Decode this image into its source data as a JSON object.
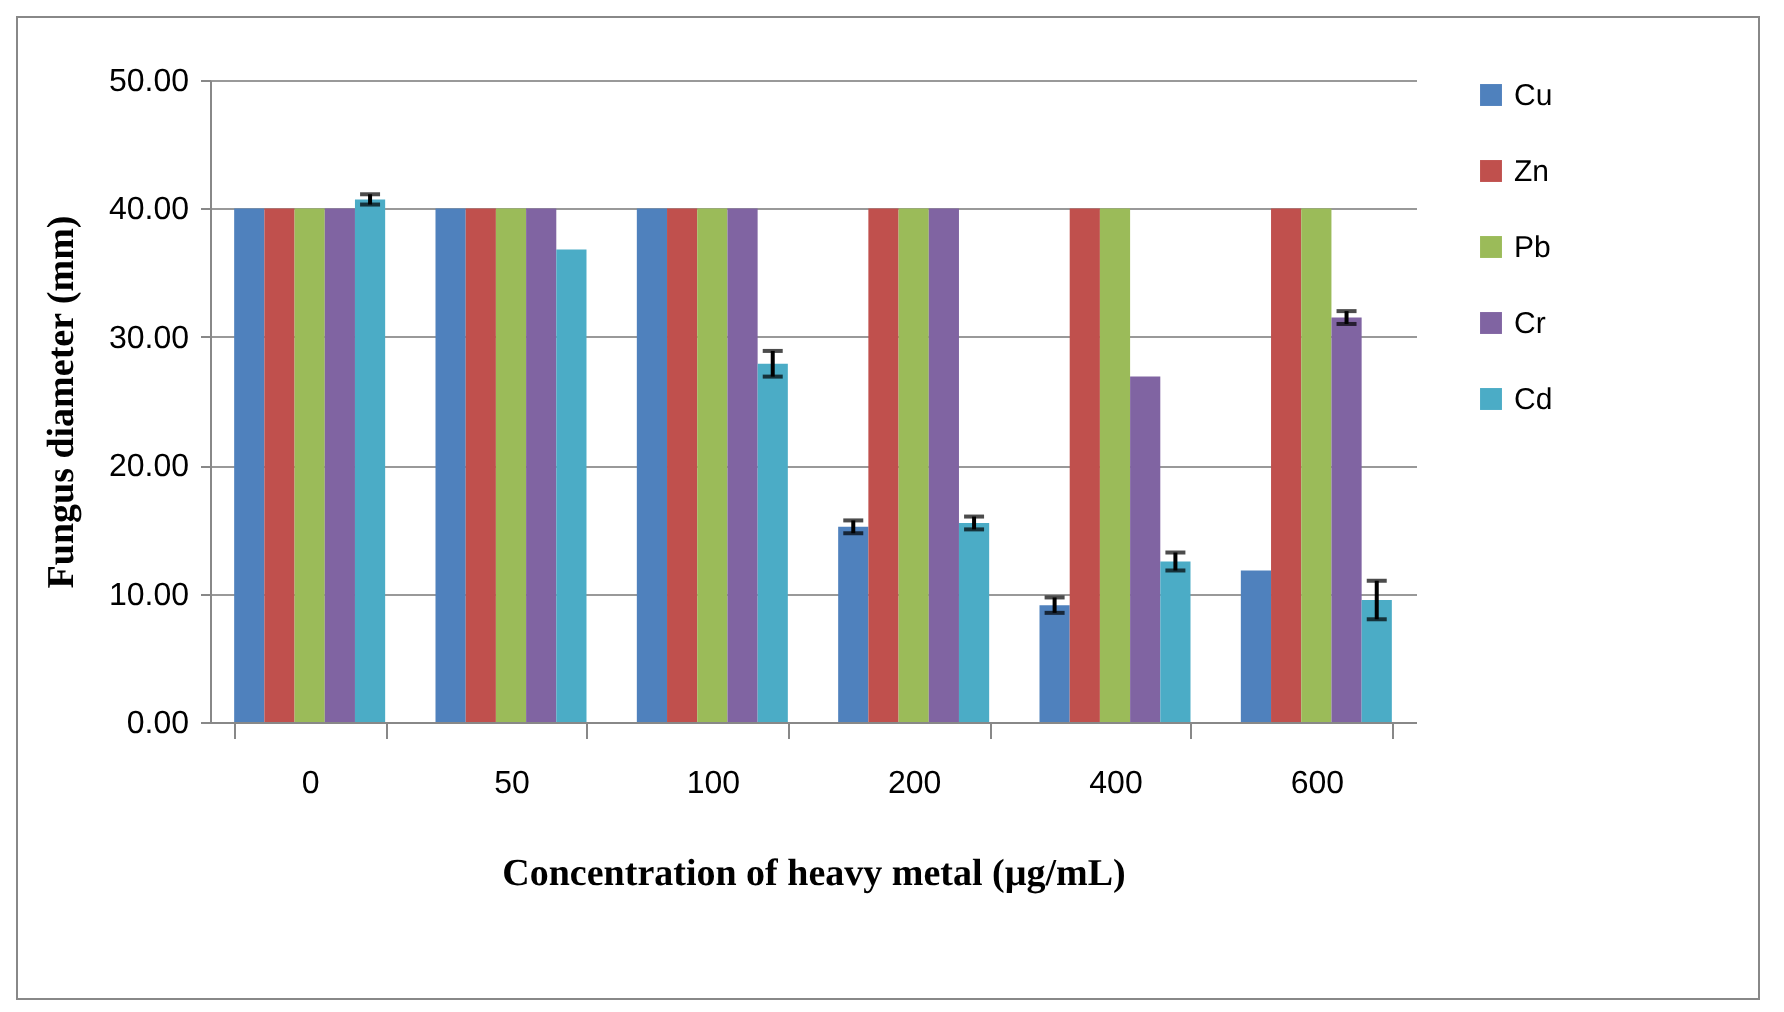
{
  "chart_data": {
    "type": "bar",
    "xlabel": "Concentration of heavy metal (µg/mL)",
    "ylabel": "Fungus diameter (mm)",
    "categories": [
      "0",
      "50",
      "100",
      "200",
      "400",
      "600"
    ],
    "series": [
      {
        "name": "Cu",
        "color": "#4f81bd",
        "values": [
          40,
          40,
          40,
          15.2,
          9.1,
          11.8
        ],
        "errors": [
          null,
          null,
          null,
          0.5,
          0.6,
          null
        ]
      },
      {
        "name": "Zn",
        "color": "#c0504d",
        "values": [
          40,
          40,
          40,
          40,
          40,
          40
        ]
      },
      {
        "name": "Pb",
        "color": "#9bbb59",
        "values": [
          40,
          40,
          40,
          40,
          40,
          40
        ]
      },
      {
        "name": "Cr",
        "color": "#8064a2",
        "values": [
          40,
          40,
          40,
          40,
          26.9,
          31.5
        ],
        "errors": [
          null,
          null,
          null,
          null,
          null,
          0.5
        ]
      },
      {
        "name": "Cd",
        "color": "#4bacc6",
        "values": [
          40.7,
          36.8,
          27.9,
          15.5,
          12.5,
          9.5
        ],
        "errors": [
          0.4,
          null,
          1.0,
          0.5,
          0.7,
          1.5
        ]
      }
    ],
    "ylim": [
      0,
      50
    ],
    "yticks": [
      {
        "value": 0,
        "label": "0.00"
      },
      {
        "value": 10,
        "label": "10.00"
      },
      {
        "value": 20,
        "label": "20.00"
      },
      {
        "value": 30,
        "label": "30.00"
      },
      {
        "value": 40,
        "label": "40.00"
      },
      {
        "value": 50,
        "label": "50.00"
      }
    ],
    "grid": "y",
    "legend": "right"
  }
}
